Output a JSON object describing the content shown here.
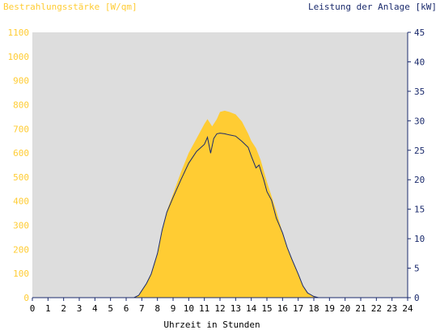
{
  "chart_data": {
    "type": "area",
    "title_left": "Bestrahlungsstärke [W/qm]",
    "title_right": "Leistung der Anlage [kW]",
    "xlabel": "Uhrzeit in Stunden",
    "xlim": [
      0,
      24
    ],
    "ylim_left": [
      0,
      1100
    ],
    "ylim_right": [
      0,
      45
    ],
    "x_ticks": [
      "0",
      "1",
      "2",
      "3",
      "4",
      "5",
      "6",
      "7",
      "8",
      "9",
      "10",
      "11",
      "12",
      "13",
      "14",
      "15",
      "16",
      "17",
      "18",
      "19",
      "20",
      "21",
      "22",
      "23",
      "24"
    ],
    "y_left_ticks": [
      "0",
      "100",
      "200",
      "300",
      "400",
      "500",
      "600",
      "700",
      "800",
      "900",
      "1000",
      "1100"
    ],
    "y_right_ticks": [
      "0",
      "5",
      "10",
      "15",
      "20",
      "25",
      "30",
      "35",
      "40",
      "45"
    ],
    "grid": false,
    "colors": {
      "irradiance": "#ffcc33",
      "power": "#1a2a6c",
      "plot_bg": "#dddddd",
      "axis": "#1a2a6c"
    },
    "series": [
      {
        "axis": "left",
        "x": [
          0,
          6.5,
          6.8,
          7.0,
          7.3,
          7.6,
          8.0,
          8.3,
          8.6,
          9.0,
          9.5,
          10.0,
          10.5,
          11.0,
          11.2,
          11.5,
          11.8,
          12.0,
          12.3,
          12.6,
          13.0,
          13.4,
          13.8,
          14.0,
          14.3,
          14.6,
          15.0,
          15.3,
          15.6,
          16.0,
          16.3,
          16.6,
          17.0,
          17.3,
          17.6,
          18.0,
          18.3,
          18.6,
          24
        ],
        "values": [
          0,
          0,
          10,
          30,
          60,
          100,
          180,
          280,
          360,
          430,
          520,
          600,
          660,
          720,
          740,
          710,
          740,
          770,
          775,
          770,
          760,
          730,
          680,
          650,
          620,
          570,
          480,
          420,
          360,
          270,
          210,
          160,
          100,
          50,
          20,
          5,
          0,
          0,
          0
        ]
      },
      {
        "axis": "right",
        "x": [
          0,
          6.5,
          6.8,
          7.0,
          7.3,
          7.6,
          8.0,
          8.3,
          8.6,
          9.0,
          9.5,
          10.0,
          10.5,
          11.0,
          11.2,
          11.4,
          11.6,
          11.8,
          12.0,
          12.3,
          12.6,
          13.0,
          13.4,
          13.8,
          14.0,
          14.3,
          14.5,
          14.8,
          15.0,
          15.3,
          15.6,
          16.0,
          16.3,
          16.6,
          17.0,
          17.3,
          17.6,
          18.0,
          18.3,
          18.6,
          24
        ],
        "values": [
          0,
          0,
          0.4,
          1.2,
          2.4,
          4.0,
          7.5,
          11.5,
          14.5,
          17.0,
          20.0,
          22.8,
          24.8,
          26.0,
          27.2,
          24.5,
          27.0,
          27.8,
          27.9,
          27.8,
          27.6,
          27.4,
          26.5,
          25.5,
          24.0,
          22.0,
          22.5,
          20.0,
          18.0,
          16.5,
          13.5,
          11.0,
          8.5,
          6.5,
          4.0,
          2.0,
          0.8,
          0.2,
          0,
          0,
          0
        ]
      }
    ]
  }
}
